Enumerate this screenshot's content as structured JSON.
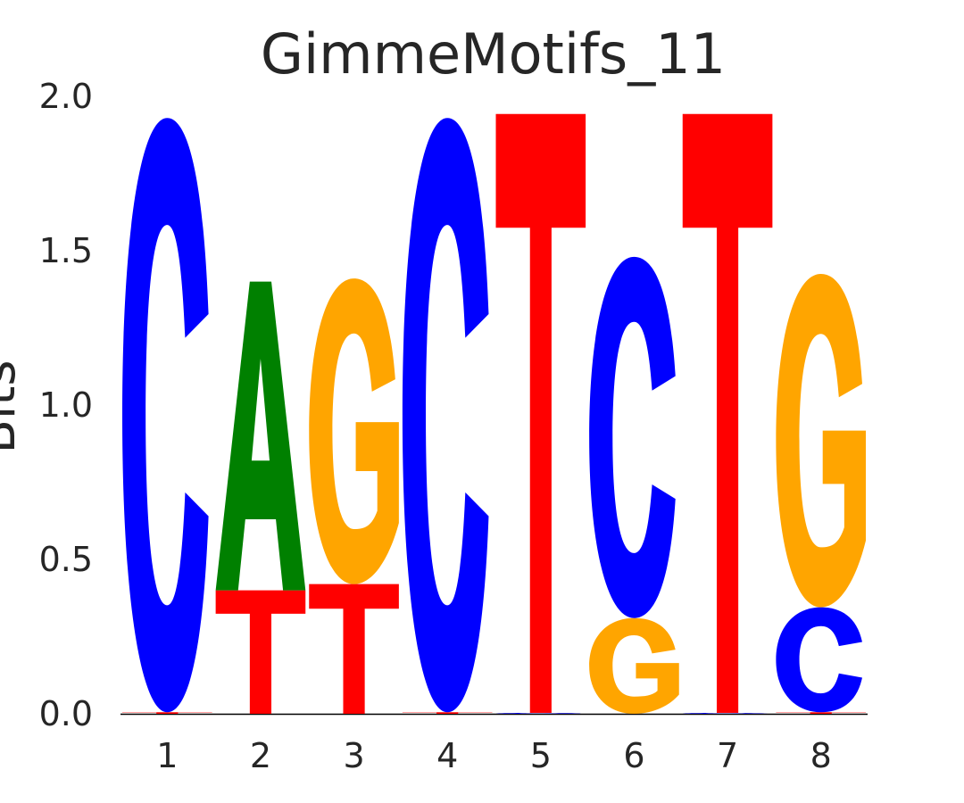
{
  "chart_data": {
    "type": "sequence-logo",
    "title": "GimmeMotifs_11",
    "xlabel": "",
    "ylabel": "Bits",
    "ylim": [
      0,
      2.0
    ],
    "yticks": [
      "0.0",
      "0.5",
      "1.0",
      "1.5",
      "2.0"
    ],
    "ytick_values": [
      0,
      0.5,
      1.0,
      1.5,
      2.0
    ],
    "categories": [
      "1",
      "2",
      "3",
      "4",
      "5",
      "6",
      "7",
      "8"
    ],
    "colors": {
      "A": "#008000",
      "C": "#0000ff",
      "G": "#ffa500",
      "T": "#ff0000"
    },
    "positions": [
      {
        "pos": "1",
        "stack": [
          {
            "base": "T",
            "height": 0.005
          },
          {
            "base": "C",
            "height": 1.925
          }
        ]
      },
      {
        "pos": "2",
        "stack": [
          {
            "base": "T",
            "height": 0.4
          },
          {
            "base": "A",
            "height": 1.0
          }
        ]
      },
      {
        "pos": "3",
        "stack": [
          {
            "base": "T",
            "height": 0.42
          },
          {
            "base": "G",
            "height": 0.99
          }
        ]
      },
      {
        "pos": "4",
        "stack": [
          {
            "base": "T",
            "height": 0.005
          },
          {
            "base": "C",
            "height": 1.925
          }
        ]
      },
      {
        "pos": "5",
        "stack": [
          {
            "base": "C",
            "height": 0.003
          },
          {
            "base": "T",
            "height": 1.94
          }
        ]
      },
      {
        "pos": "6",
        "stack": [
          {
            "base": "G",
            "height": 0.31
          },
          {
            "base": "C",
            "height": 1.17
          }
        ]
      },
      {
        "pos": "7",
        "stack": [
          {
            "base": "C",
            "height": 0.003
          },
          {
            "base": "T",
            "height": 1.94
          }
        ]
      },
      {
        "pos": "8",
        "stack": [
          {
            "base": "T",
            "height": 0.005
          },
          {
            "base": "C",
            "height": 0.34
          },
          {
            "base": "G",
            "height": 1.08
          }
        ]
      }
    ]
  }
}
